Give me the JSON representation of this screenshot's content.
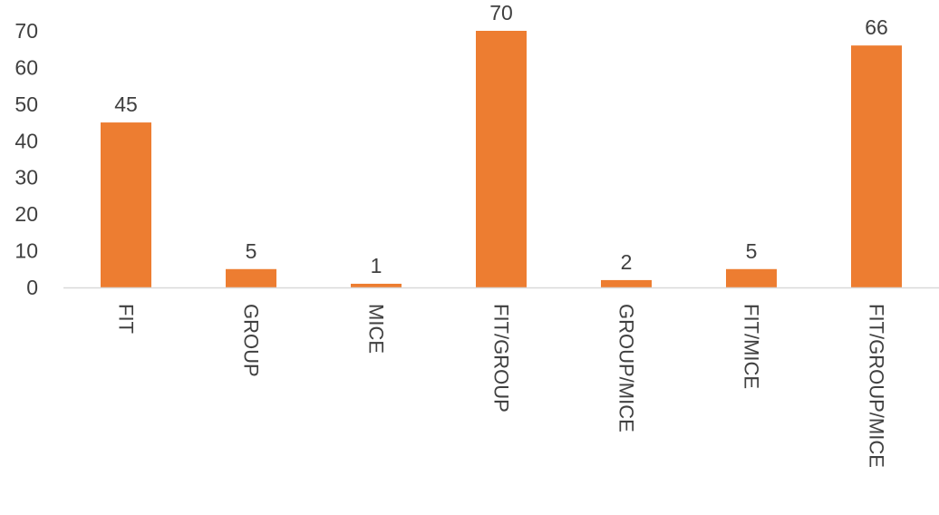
{
  "chart_data": {
    "type": "bar",
    "categories": [
      "FIT",
      "GROUP",
      "MICE",
      "FIT/GROUP",
      "GROUP/MICE",
      "FIT/MICE",
      "FIT/GROUP/MICE"
    ],
    "values": [
      45,
      5,
      1,
      70,
      2,
      5,
      66
    ],
    "title": "",
    "xlabel": "",
    "ylabel": "",
    "ylim": [
      0,
      70
    ],
    "yticks": [
      "0",
      "10",
      "20",
      "30",
      "40",
      "50",
      "60",
      "70"
    ],
    "data_labels": [
      "45",
      "5",
      "1",
      "70",
      "2",
      "5",
      "66"
    ],
    "grid": false,
    "legend": "none",
    "colors": {
      "bar": "#ED7D31",
      "axis": "#D9D9D9",
      "text": "#404040"
    }
  }
}
